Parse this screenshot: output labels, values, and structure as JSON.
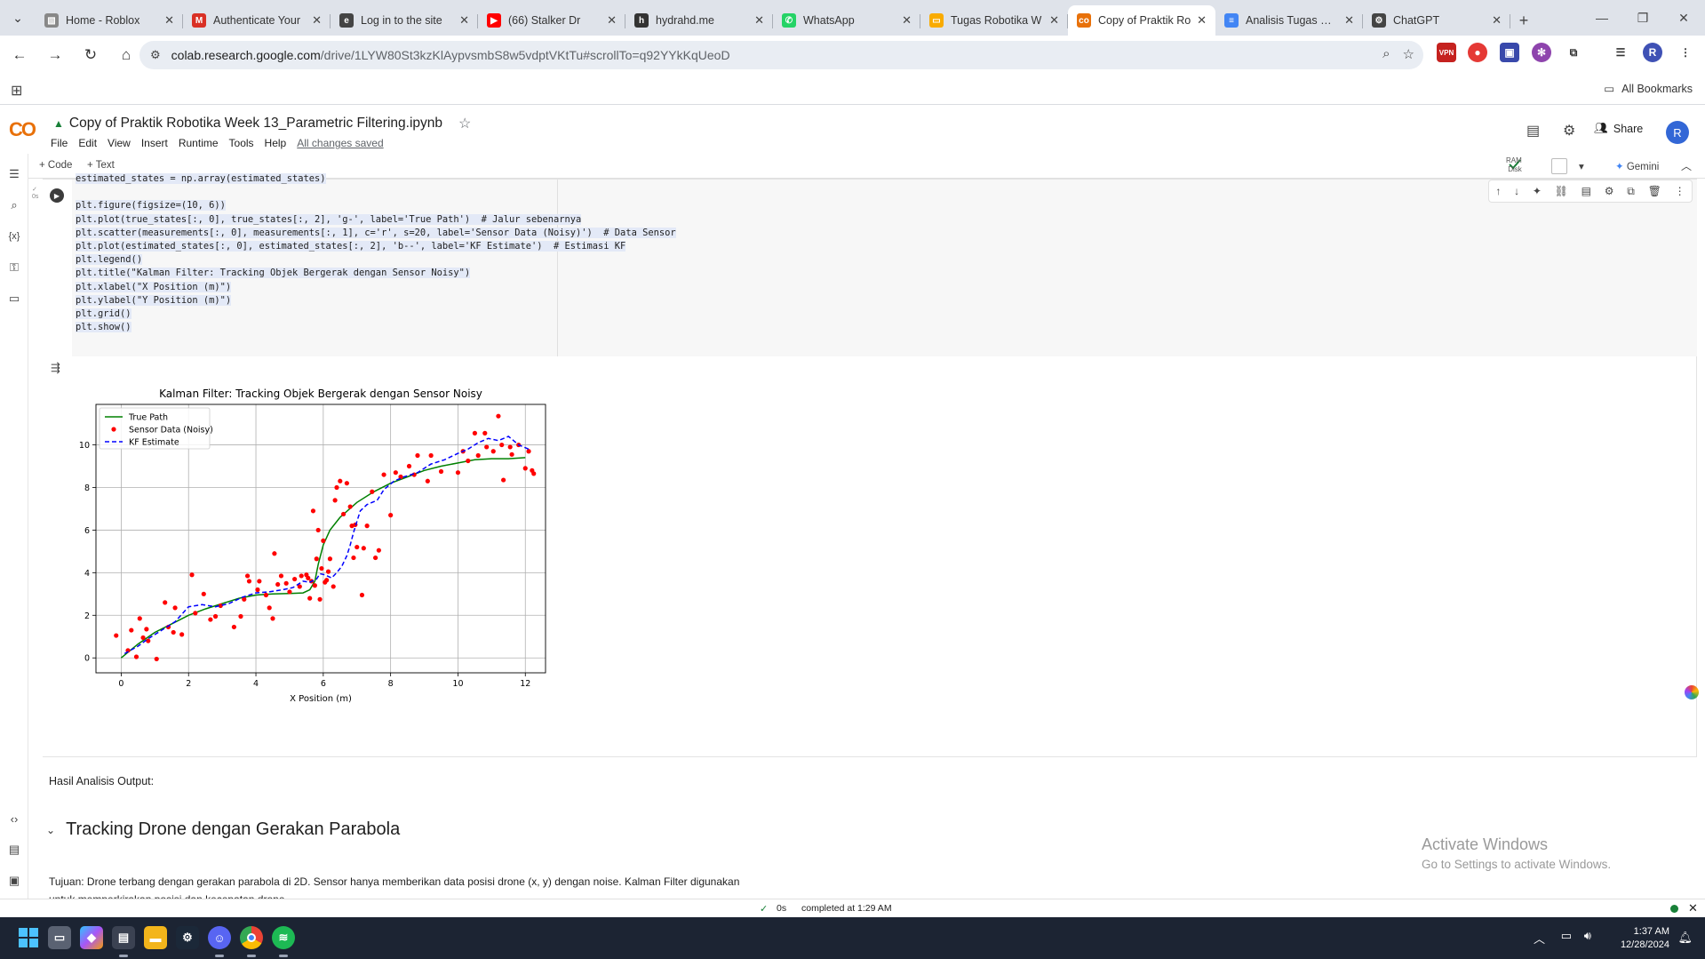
{
  "browser": {
    "tabs": [
      {
        "title": "Home - Roblox",
        "color": "#888888",
        "glyph": "▧"
      },
      {
        "title": "Authenticate Your",
        "color": "#d93025",
        "glyph": "M"
      },
      {
        "title": "Log in to the site",
        "color": "#444444",
        "glyph": "e"
      },
      {
        "title": "(66) Stalker Dr",
        "color": "#ff0000",
        "glyph": "▶"
      },
      {
        "title": "hydrahd.me",
        "color": "#333333",
        "glyph": "h"
      },
      {
        "title": "WhatsApp",
        "color": "#25d366",
        "glyph": "✆"
      },
      {
        "title": "Tugas Robotika W",
        "color": "#f9ab00",
        "glyph": "▭"
      },
      {
        "title": "Copy of Praktik Ro",
        "color": "#e8710a",
        "glyph": "co",
        "active": true
      },
      {
        "title": "Analisis Tugas Rob",
        "color": "#4285f4",
        "glyph": "≡"
      },
      {
        "title": "ChatGPT",
        "color": "#444444",
        "glyph": "⚙"
      }
    ],
    "url_host": "colab.research.google.com",
    "url_path": "/drive/1LYW80St3kzKlAypvsmbS8w5vdptVKtTu#scrollTo=q92YYkKqUeoD",
    "all_bookmarks": "All Bookmarks",
    "profile_initial": "R"
  },
  "colab": {
    "logo": "CO",
    "notebook_title": "Copy of Praktik Robotika Week 13_Parametric Filtering.ipynb",
    "menu": [
      "File",
      "Edit",
      "View",
      "Insert",
      "Runtime",
      "Tools",
      "Help"
    ],
    "saved_status": "All changes saved",
    "share_label": "Share",
    "user_initial": "R",
    "add_code": "+ Code",
    "add_text": "+ Text",
    "ram_label": "RAM",
    "disk_label": "Disk",
    "gemini_label": "Gemini"
  },
  "code_lines": [
    "estimated_states = np.array(estimated_states)",
    "",
    "plt.figure(figsize=(10, 6))",
    "plt.plot(true_states[:, 0], true_states[:, 2], 'g-', label='True Path')  # Jalur sebenarnya",
    "plt.scatter(measurements[:, 0], measurements[:, 1], c='r', s=20, label='Sensor Data (Noisy)')  # Data Sensor",
    "plt.plot(estimated_states[:, 0], estimated_states[:, 2], 'b--', label='KF Estimate')  # Estimasi KF",
    "plt.legend()",
    "plt.title(\"Kalman Filter: Tracking Objek Bergerak dengan Sensor Noisy\")",
    "plt.xlabel(\"X Position (m)\")",
    "plt.ylabel(\"Y Position (m)\")",
    "plt.grid()",
    "plt.show()"
  ],
  "chart_data": {
    "type": "line",
    "title": "Kalman Filter: Tracking Objek Bergerak dengan Sensor Noisy",
    "xlabel": "X Position (m)",
    "ylabel": "Y Position (m)",
    "xlim": [
      -0.75,
      12.6
    ],
    "ylim": [
      -0.7,
      11.9
    ],
    "xticks": [
      0,
      2,
      4,
      6,
      8,
      10,
      12
    ],
    "yticks": [
      0,
      2,
      4,
      6,
      8,
      10
    ],
    "grid": true,
    "legend": "top-left",
    "series": [
      {
        "name": "True Path",
        "kind": "line",
        "color": "#008000",
        "dash": "solid",
        "points": [
          [
            0,
            0
          ],
          [
            0.5,
            0.65
          ],
          [
            1,
            1.2
          ],
          [
            1.5,
            1.6
          ],
          [
            2,
            2.0
          ],
          [
            2.5,
            2.3
          ],
          [
            3,
            2.55
          ],
          [
            3.5,
            2.8
          ],
          [
            4,
            2.95
          ],
          [
            4.5,
            3.0
          ],
          [
            5,
            3.02
          ],
          [
            5.4,
            3.05
          ],
          [
            5.6,
            3.2
          ],
          [
            5.75,
            3.6
          ],
          [
            5.85,
            4.4
          ],
          [
            6,
            5.3
          ],
          [
            6.2,
            6.0
          ],
          [
            6.5,
            6.6
          ],
          [
            7,
            7.3
          ],
          [
            7.5,
            7.8
          ],
          [
            8,
            8.2
          ],
          [
            8.5,
            8.5
          ],
          [
            9,
            8.8
          ],
          [
            9.5,
            9.0
          ],
          [
            10,
            9.15
          ],
          [
            10.5,
            9.3
          ],
          [
            11,
            9.35
          ],
          [
            11.5,
            9.35
          ],
          [
            12,
            9.4
          ]
        ]
      },
      {
        "name": "Sensor Data (Noisy)",
        "kind": "scatter",
        "color": "#ff0000",
        "points": [
          [
            -0.15,
            1.05
          ],
          [
            0.2,
            0.35
          ],
          [
            0.3,
            1.3
          ],
          [
            0.45,
            0.05
          ],
          [
            0.55,
            1.85
          ],
          [
            0.65,
            0.95
          ],
          [
            0.75,
            1.35
          ],
          [
            0.8,
            0.8
          ],
          [
            1.05,
            -0.05
          ],
          [
            1.3,
            2.6
          ],
          [
            1.4,
            1.45
          ],
          [
            1.55,
            1.2
          ],
          [
            1.6,
            2.35
          ],
          [
            1.8,
            1.1
          ],
          [
            2.1,
            3.9
          ],
          [
            2.2,
            2.1
          ],
          [
            2.45,
            3.0
          ],
          [
            2.65,
            1.8
          ],
          [
            2.8,
            1.95
          ],
          [
            2.95,
            2.45
          ],
          [
            3.35,
            1.45
          ],
          [
            3.55,
            1.95
          ],
          [
            3.65,
            2.75
          ],
          [
            3.75,
            3.85
          ],
          [
            3.8,
            3.6
          ],
          [
            4.05,
            3.2
          ],
          [
            4.1,
            3.6
          ],
          [
            4.3,
            2.95
          ],
          [
            4.4,
            2.35
          ],
          [
            4.5,
            1.85
          ],
          [
            4.55,
            4.9
          ],
          [
            4.65,
            3.45
          ],
          [
            4.75,
            3.85
          ],
          [
            4.9,
            3.5
          ],
          [
            5.0,
            3.1
          ],
          [
            5.15,
            3.7
          ],
          [
            5.3,
            3.35
          ],
          [
            5.35,
            3.85
          ],
          [
            5.5,
            3.9
          ],
          [
            5.55,
            3.75
          ],
          [
            5.6,
            2.8
          ],
          [
            5.65,
            3.6
          ],
          [
            5.7,
            6.9
          ],
          [
            5.75,
            3.4
          ],
          [
            5.8,
            4.65
          ],
          [
            5.85,
            6.0
          ],
          [
            5.9,
            2.75
          ],
          [
            5.95,
            4.2
          ],
          [
            6.0,
            5.5
          ],
          [
            6.05,
            3.55
          ],
          [
            6.1,
            3.65
          ],
          [
            6.15,
            4.05
          ],
          [
            6.2,
            4.65
          ],
          [
            6.3,
            3.35
          ],
          [
            6.35,
            7.4
          ],
          [
            6.4,
            8.0
          ],
          [
            6.5,
            8.3
          ],
          [
            6.6,
            6.75
          ],
          [
            6.7,
            8.2
          ],
          [
            6.8,
            7.1
          ],
          [
            6.85,
            6.2
          ],
          [
            6.9,
            4.7
          ],
          [
            6.95,
            6.25
          ],
          [
            7.0,
            5.2
          ],
          [
            7.15,
            2.95
          ],
          [
            7.2,
            5.15
          ],
          [
            7.3,
            6.2
          ],
          [
            7.45,
            7.8
          ],
          [
            7.55,
            4.7
          ],
          [
            7.65,
            5.05
          ],
          [
            7.8,
            8.6
          ],
          [
            8.0,
            6.7
          ],
          [
            8.15,
            8.7
          ],
          [
            8.3,
            8.5
          ],
          [
            8.55,
            9.0
          ],
          [
            8.7,
            8.6
          ],
          [
            8.8,
            9.5
          ],
          [
            9.1,
            8.3
          ],
          [
            9.2,
            9.5
          ],
          [
            9.5,
            8.75
          ],
          [
            10.0,
            8.7
          ],
          [
            10.15,
            9.7
          ],
          [
            10.3,
            9.25
          ],
          [
            10.5,
            10.55
          ],
          [
            10.6,
            9.5
          ],
          [
            10.8,
            10.55
          ],
          [
            10.85,
            9.9
          ],
          [
            11.05,
            9.7
          ],
          [
            11.2,
            11.35
          ],
          [
            11.3,
            10.0
          ],
          [
            11.35,
            8.35
          ],
          [
            11.55,
            9.9
          ],
          [
            11.6,
            9.55
          ],
          [
            11.8,
            10.0
          ],
          [
            12.0,
            8.9
          ],
          [
            12.1,
            9.7
          ],
          [
            12.2,
            8.8
          ],
          [
            12.25,
            8.65
          ]
        ]
      },
      {
        "name": "KF Estimate",
        "kind": "line",
        "color": "#0000ff",
        "dash": "dashed",
        "points": [
          [
            0.1,
            0.2
          ],
          [
            0.5,
            0.55
          ],
          [
            0.8,
            0.9
          ],
          [
            1.2,
            1.3
          ],
          [
            1.6,
            1.7
          ],
          [
            2.0,
            2.4
          ],
          [
            2.4,
            2.5
          ],
          [
            2.8,
            2.4
          ],
          [
            3.2,
            2.55
          ],
          [
            3.6,
            2.85
          ],
          [
            4.0,
            3.05
          ],
          [
            4.4,
            3.1
          ],
          [
            4.8,
            3.2
          ],
          [
            5.1,
            3.3
          ],
          [
            5.4,
            3.6
          ],
          [
            5.6,
            3.55
          ],
          [
            5.8,
            3.7
          ],
          [
            5.9,
            3.95
          ],
          [
            6.05,
            3.9
          ],
          [
            6.25,
            3.75
          ],
          [
            6.4,
            4.0
          ],
          [
            6.55,
            4.3
          ],
          [
            6.7,
            4.8
          ],
          [
            6.8,
            5.3
          ],
          [
            6.9,
            5.9
          ],
          [
            7.0,
            6.4
          ],
          [
            7.1,
            6.9
          ],
          [
            7.3,
            7.2
          ],
          [
            7.6,
            7.4
          ],
          [
            7.8,
            7.9
          ],
          [
            8.1,
            8.3
          ],
          [
            8.4,
            8.5
          ],
          [
            8.8,
            8.7
          ],
          [
            9.2,
            9.1
          ],
          [
            9.6,
            9.3
          ],
          [
            10.0,
            9.6
          ],
          [
            10.3,
            9.8
          ],
          [
            10.6,
            10.1
          ],
          [
            10.9,
            10.3
          ],
          [
            11.2,
            10.2
          ],
          [
            11.5,
            10.4
          ],
          [
            11.8,
            10.0
          ],
          [
            12.1,
            9.8
          ]
        ]
      }
    ]
  },
  "markdown": {
    "result_label": "Hasil Analisis Output:",
    "section_heading": "Tracking Drone dengan Gerakan Parabola",
    "tujuan_text": "Tujuan: Drone terbang dengan gerakan parabola di 2D. Sensor hanya memberikan data posisi drone (x, y) dengan noise. Kalman Filter digunakan untuk memperkirakan posisi dan kecepatan drone."
  },
  "watermark": {
    "line1": "Activate Windows",
    "line2": "Go to Settings to activate Windows."
  },
  "status": {
    "duration": "0s",
    "text": "completed at 1:29 AM"
  },
  "taskbar": {
    "time": "1:37 AM",
    "date": "12/28/2024"
  }
}
